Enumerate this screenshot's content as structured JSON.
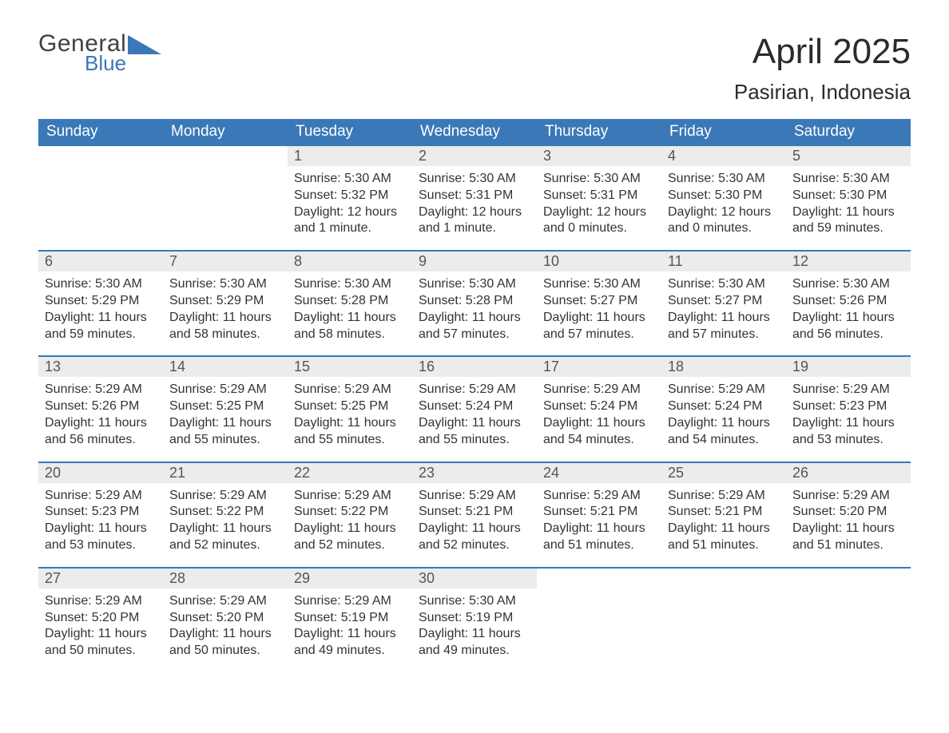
{
  "logo": {
    "word1": "General",
    "word2": "Blue",
    "tri_color": "#3a78b8",
    "text1_color": "#414141"
  },
  "title": {
    "month": "April 2025",
    "location": "Pasirian, Indonesia"
  },
  "colors": {
    "header_bg": "#3a78b8",
    "header_text": "#ffffff",
    "daynum_bg": "#ececec",
    "week_border": "#3a78b8",
    "body_text": "#333333"
  },
  "day_headers": [
    "Sunday",
    "Monday",
    "Tuesday",
    "Wednesday",
    "Thursday",
    "Friday",
    "Saturday"
  ],
  "weeks": [
    [
      null,
      null,
      {
        "n": "1",
        "sr": "Sunrise: 5:30 AM",
        "ss": "Sunset: 5:32 PM",
        "dl1": "Daylight: 12 hours",
        "dl2": "and 1 minute."
      },
      {
        "n": "2",
        "sr": "Sunrise: 5:30 AM",
        "ss": "Sunset: 5:31 PM",
        "dl1": "Daylight: 12 hours",
        "dl2": "and 1 minute."
      },
      {
        "n": "3",
        "sr": "Sunrise: 5:30 AM",
        "ss": "Sunset: 5:31 PM",
        "dl1": "Daylight: 12 hours",
        "dl2": "and 0 minutes."
      },
      {
        "n": "4",
        "sr": "Sunrise: 5:30 AM",
        "ss": "Sunset: 5:30 PM",
        "dl1": "Daylight: 12 hours",
        "dl2": "and 0 minutes."
      },
      {
        "n": "5",
        "sr": "Sunrise: 5:30 AM",
        "ss": "Sunset: 5:30 PM",
        "dl1": "Daylight: 11 hours",
        "dl2": "and 59 minutes."
      }
    ],
    [
      {
        "n": "6",
        "sr": "Sunrise: 5:30 AM",
        "ss": "Sunset: 5:29 PM",
        "dl1": "Daylight: 11 hours",
        "dl2": "and 59 minutes."
      },
      {
        "n": "7",
        "sr": "Sunrise: 5:30 AM",
        "ss": "Sunset: 5:29 PM",
        "dl1": "Daylight: 11 hours",
        "dl2": "and 58 minutes."
      },
      {
        "n": "8",
        "sr": "Sunrise: 5:30 AM",
        "ss": "Sunset: 5:28 PM",
        "dl1": "Daylight: 11 hours",
        "dl2": "and 58 minutes."
      },
      {
        "n": "9",
        "sr": "Sunrise: 5:30 AM",
        "ss": "Sunset: 5:28 PM",
        "dl1": "Daylight: 11 hours",
        "dl2": "and 57 minutes."
      },
      {
        "n": "10",
        "sr": "Sunrise: 5:30 AM",
        "ss": "Sunset: 5:27 PM",
        "dl1": "Daylight: 11 hours",
        "dl2": "and 57 minutes."
      },
      {
        "n": "11",
        "sr": "Sunrise: 5:30 AM",
        "ss": "Sunset: 5:27 PM",
        "dl1": "Daylight: 11 hours",
        "dl2": "and 57 minutes."
      },
      {
        "n": "12",
        "sr": "Sunrise: 5:30 AM",
        "ss": "Sunset: 5:26 PM",
        "dl1": "Daylight: 11 hours",
        "dl2": "and 56 minutes."
      }
    ],
    [
      {
        "n": "13",
        "sr": "Sunrise: 5:29 AM",
        "ss": "Sunset: 5:26 PM",
        "dl1": "Daylight: 11 hours",
        "dl2": "and 56 minutes."
      },
      {
        "n": "14",
        "sr": "Sunrise: 5:29 AM",
        "ss": "Sunset: 5:25 PM",
        "dl1": "Daylight: 11 hours",
        "dl2": "and 55 minutes."
      },
      {
        "n": "15",
        "sr": "Sunrise: 5:29 AM",
        "ss": "Sunset: 5:25 PM",
        "dl1": "Daylight: 11 hours",
        "dl2": "and 55 minutes."
      },
      {
        "n": "16",
        "sr": "Sunrise: 5:29 AM",
        "ss": "Sunset: 5:24 PM",
        "dl1": "Daylight: 11 hours",
        "dl2": "and 55 minutes."
      },
      {
        "n": "17",
        "sr": "Sunrise: 5:29 AM",
        "ss": "Sunset: 5:24 PM",
        "dl1": "Daylight: 11 hours",
        "dl2": "and 54 minutes."
      },
      {
        "n": "18",
        "sr": "Sunrise: 5:29 AM",
        "ss": "Sunset: 5:24 PM",
        "dl1": "Daylight: 11 hours",
        "dl2": "and 54 minutes."
      },
      {
        "n": "19",
        "sr": "Sunrise: 5:29 AM",
        "ss": "Sunset: 5:23 PM",
        "dl1": "Daylight: 11 hours",
        "dl2": "and 53 minutes."
      }
    ],
    [
      {
        "n": "20",
        "sr": "Sunrise: 5:29 AM",
        "ss": "Sunset: 5:23 PM",
        "dl1": "Daylight: 11 hours",
        "dl2": "and 53 minutes."
      },
      {
        "n": "21",
        "sr": "Sunrise: 5:29 AM",
        "ss": "Sunset: 5:22 PM",
        "dl1": "Daylight: 11 hours",
        "dl2": "and 52 minutes."
      },
      {
        "n": "22",
        "sr": "Sunrise: 5:29 AM",
        "ss": "Sunset: 5:22 PM",
        "dl1": "Daylight: 11 hours",
        "dl2": "and 52 minutes."
      },
      {
        "n": "23",
        "sr": "Sunrise: 5:29 AM",
        "ss": "Sunset: 5:21 PM",
        "dl1": "Daylight: 11 hours",
        "dl2": "and 52 minutes."
      },
      {
        "n": "24",
        "sr": "Sunrise: 5:29 AM",
        "ss": "Sunset: 5:21 PM",
        "dl1": "Daylight: 11 hours",
        "dl2": "and 51 minutes."
      },
      {
        "n": "25",
        "sr": "Sunrise: 5:29 AM",
        "ss": "Sunset: 5:21 PM",
        "dl1": "Daylight: 11 hours",
        "dl2": "and 51 minutes."
      },
      {
        "n": "26",
        "sr": "Sunrise: 5:29 AM",
        "ss": "Sunset: 5:20 PM",
        "dl1": "Daylight: 11 hours",
        "dl2": "and 51 minutes."
      }
    ],
    [
      {
        "n": "27",
        "sr": "Sunrise: 5:29 AM",
        "ss": "Sunset: 5:20 PM",
        "dl1": "Daylight: 11 hours",
        "dl2": "and 50 minutes."
      },
      {
        "n": "28",
        "sr": "Sunrise: 5:29 AM",
        "ss": "Sunset: 5:20 PM",
        "dl1": "Daylight: 11 hours",
        "dl2": "and 50 minutes."
      },
      {
        "n": "29",
        "sr": "Sunrise: 5:29 AM",
        "ss": "Sunset: 5:19 PM",
        "dl1": "Daylight: 11 hours",
        "dl2": "and 49 minutes."
      },
      {
        "n": "30",
        "sr": "Sunrise: 5:30 AM",
        "ss": "Sunset: 5:19 PM",
        "dl1": "Daylight: 11 hours",
        "dl2": "and 49 minutes."
      },
      null,
      null,
      null
    ]
  ]
}
